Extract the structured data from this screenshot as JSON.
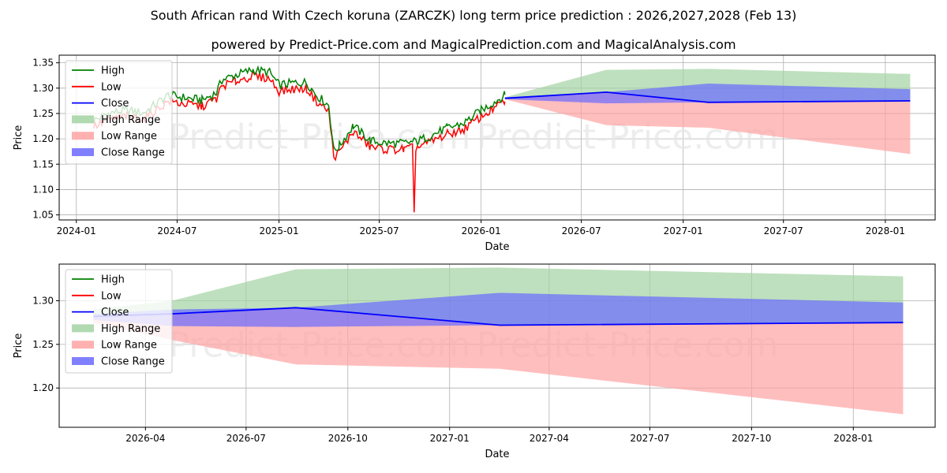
{
  "title_line1": "South African rand With Czech koruna (ZARCZK) long term price prediction : 2026,2027,2028 (Feb 13)",
  "title_line2": "powered by Predict-Price.com and MagicalPrediction.com and MagicalAnalysis.com",
  "watermark": "Predict-Price.com",
  "colors": {
    "high": "#008000",
    "low": "#ff0000",
    "close": "#0000ff",
    "high_range": "#a3d3a3",
    "low_range": "#ffa3a3",
    "close_range": "#6a6aff"
  },
  "legend": [
    "High",
    "Low",
    "Close",
    "High Range",
    "Low Range",
    "Close Range"
  ],
  "chart_data": [
    {
      "type": "line",
      "xlabel": "Date",
      "ylabel": "Price",
      "xlim": [
        "2023-12-01",
        "2028-03-31"
      ],
      "ylim": [
        1.04,
        1.365
      ],
      "x_ticks": [
        "2024-01",
        "2024-07",
        "2025-01",
        "2025-07",
        "2026-01",
        "2026-07",
        "2027-01",
        "2027-07",
        "2028-01"
      ],
      "y_ticks": [
        "1.05",
        "1.10",
        "1.15",
        "1.20",
        "1.25",
        "1.30",
        "1.35"
      ],
      "history_close": [
        [
          "2024-02-01",
          1.23
        ],
        [
          "2024-03-01",
          1.245
        ],
        [
          "2024-04-01",
          1.25
        ],
        [
          "2024-05-01",
          1.245
        ],
        [
          "2024-06-15",
          1.28
        ],
        [
          "2024-07-15",
          1.275
        ],
        [
          "2024-08-15",
          1.27
        ],
        [
          "2024-09-10",
          1.285
        ],
        [
          "2024-09-20",
          1.31
        ],
        [
          "2024-10-15",
          1.32
        ],
        [
          "2024-11-15",
          1.33
        ],
        [
          "2024-12-15",
          1.325
        ],
        [
          "2025-01-01",
          1.3
        ],
        [
          "2025-02-01",
          1.305
        ],
        [
          "2025-02-20",
          1.305
        ],
        [
          "2025-03-10",
          1.28
        ],
        [
          "2025-04-01",
          1.26
        ],
        [
          "2025-04-10",
          1.17
        ],
        [
          "2025-04-20",
          1.18
        ],
        [
          "2025-05-15",
          1.22
        ],
        [
          "2025-06-15",
          1.19
        ],
        [
          "2025-07-15",
          1.185
        ],
        [
          "2025-08-15",
          1.185
        ],
        [
          "2025-09-10",
          1.19
        ],
        [
          "2025-10-01",
          1.2
        ],
        [
          "2025-11-01",
          1.215
        ],
        [
          "2025-12-01",
          1.225
        ],
        [
          "2026-01-01",
          1.25
        ],
        [
          "2026-02-13",
          1.28
        ]
      ],
      "history_band": 0.012,
      "history_low_spike": [
        "2025-09-02",
        1.055
      ],
      "forecast": {
        "x": [
          "2026-02-13",
          "2026-08-15",
          "2027-02-15",
          "2028-02-15"
        ],
        "high": [
          1.282,
          1.336,
          1.338,
          1.328
        ],
        "low": [
          1.278,
          1.227,
          1.222,
          1.17
        ],
        "close": [
          1.28,
          1.292,
          1.272,
          1.275
        ],
        "close_upper": [
          1.282,
          1.292,
          1.309,
          1.298
        ],
        "close_lower": [
          1.278,
          1.27,
          1.272,
          1.275
        ]
      }
    },
    {
      "type": "line",
      "xlabel": "Date",
      "ylabel": "Price",
      "xlim": [
        "2026-01-13",
        "2028-03-15"
      ],
      "ylim": [
        1.155,
        1.342
      ],
      "x_ticks": [
        "2026-04",
        "2026-07",
        "2026-10",
        "2027-01",
        "2027-04",
        "2027-07",
        "2027-10",
        "2028-01"
      ],
      "y_ticks": [
        "1.20",
        "1.25",
        "1.30"
      ],
      "forecast": {
        "x": [
          "2026-02-13",
          "2026-04-25",
          "2026-08-15",
          "2027-02-15",
          "2028-02-15"
        ],
        "high": [
          1.29,
          1.3,
          1.336,
          1.338,
          1.328
        ],
        "low": [
          1.275,
          1.255,
          1.227,
          1.222,
          1.17
        ],
        "close": [
          1.282,
          1.285,
          1.292,
          1.272,
          1.275
        ],
        "close_upper": [
          1.285,
          1.29,
          1.292,
          1.309,
          1.298
        ],
        "close_lower": [
          1.278,
          1.271,
          1.27,
          1.272,
          1.275
        ]
      }
    }
  ]
}
